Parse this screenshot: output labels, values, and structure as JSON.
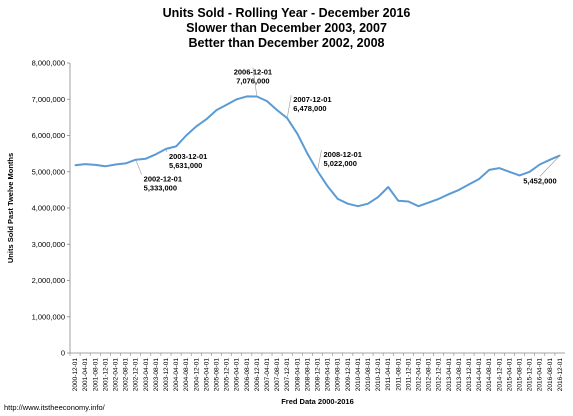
{
  "title_lines": [
    "Units Sold - Rolling Year - December 2016",
    "Slower than December 2003, 2007",
    "Better than December 2002, 2008"
  ],
  "footer_source": "http://www.itstheeconomy.info/",
  "footer_note": "Fred Data 2000-2016",
  "chart_data": {
    "type": "line",
    "title": "Units Sold - Rolling Year - December 2016",
    "subtitle": [
      "Slower than December 2003, 2007",
      "Better than December 2002, 2008"
    ],
    "xlabel": "Fred Data 2000-2016",
    "ylabel": "Units Sold Past Twelve Months",
    "ylim": [
      0,
      8000000
    ],
    "y_ticks": [
      "0",
      "1,000,000",
      "2,000,000",
      "3,000,000",
      "4,000,000",
      "5,000,000",
      "6,000,000",
      "7,000,000",
      "8,000,000"
    ],
    "y_tick_values": [
      0,
      1000000,
      2000000,
      3000000,
      4000000,
      5000000,
      6000000,
      7000000,
      8000000
    ],
    "x_ticks": [
      "2000-12-01",
      "2001-04-01",
      "2001-08-01",
      "2001-12-01",
      "2002-04-01",
      "2002-08-01",
      "2002-12-01",
      "2003-04-01",
      "2003-08-01",
      "2003-12-01",
      "2004-04-01",
      "2004-08-01",
      "2004-12-01",
      "2005-04-01",
      "2005-08-01",
      "2005-12-01",
      "2006-04-01",
      "2006-08-01",
      "2006-12-01",
      "2007-04-01",
      "2007-08-01",
      "2007-12-01",
      "2008-04-01",
      "2008-08-01",
      "2008-12-01",
      "2009-04-01",
      "2009-08-01",
      "2009-12-01",
      "2010-04-01",
      "2010-08-01",
      "2010-12-01",
      "2011-04-01",
      "2011-08-01",
      "2011-12-01",
      "2012-04-01",
      "2012-08-01",
      "2012-12-01",
      "2013-04-01",
      "2013-08-01",
      "2013-12-01",
      "2014-04-01",
      "2014-08-01",
      "2014-12-01",
      "2015-04-01",
      "2015-08-01",
      "2015-12-01",
      "2016-04-01",
      "2016-08-01",
      "2016-12-01"
    ],
    "series": [
      {
        "color": "#5b9bd5",
        "values": [
          5180000,
          5210000,
          5190000,
          5150000,
          5200000,
          5230000,
          5333000,
          5360000,
          5480000,
          5631000,
          5700000,
          6000000,
          6250000,
          6450000,
          6700000,
          6850000,
          7000000,
          7080000,
          7076000,
          6950000,
          6700000,
          6478000,
          6050000,
          5500000,
          5022000,
          4600000,
          4250000,
          4120000,
          4050000,
          4120000,
          4300000,
          4580000,
          4200000,
          4180000,
          4050000,
          4150000,
          4250000,
          4380000,
          4500000,
          4650000,
          4800000,
          5050000,
          5100000,
          5000000,
          4900000,
          5000000,
          5200000,
          5330000,
          5452000
        ]
      }
    ],
    "annotations": [
      {
        "date": "2002-12-01",
        "value": "5,333,000"
      },
      {
        "date": "2003-12-01",
        "value": "5,631,000"
      },
      {
        "date": "2006-12-01",
        "value": "7,076,000"
      },
      {
        "date": "2007-12-01",
        "value": "6,478,000"
      },
      {
        "date": "2008-12-01",
        "value": "5,022,000"
      },
      {
        "date": "",
        "value": "5,452,000"
      }
    ],
    "grid": false,
    "legend": "none"
  }
}
